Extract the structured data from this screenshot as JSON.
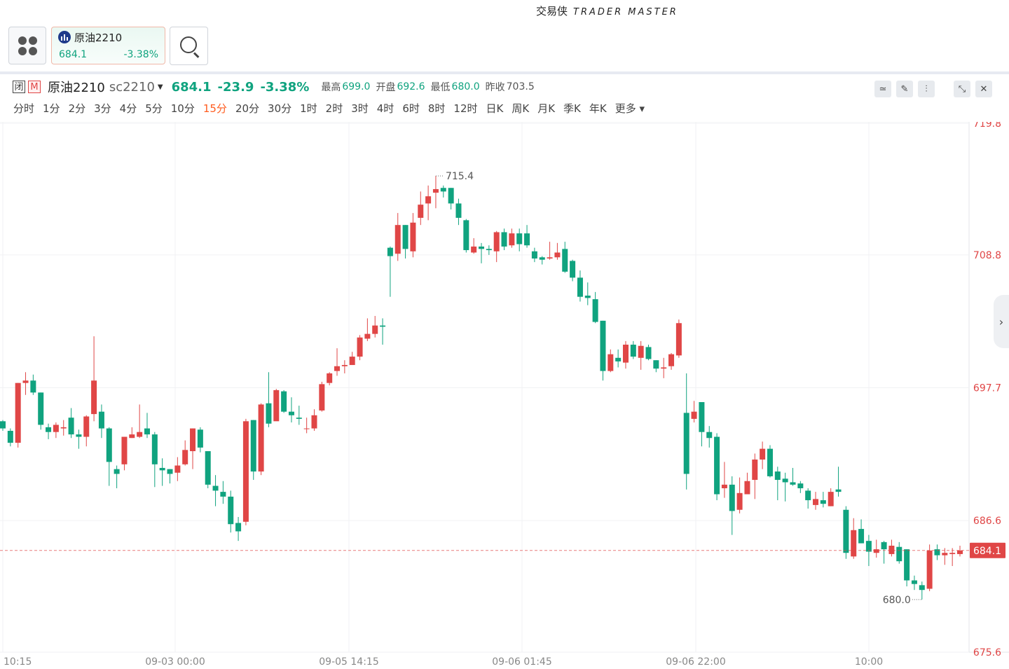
{
  "brand": {
    "cn": "交易侠",
    "en": "TRADER MASTER"
  },
  "topbar": {
    "symbol_tab": {
      "name": "原油2210",
      "price": "684.1",
      "change_pct": "-3.38%"
    }
  },
  "info": {
    "closed_tag": "闭",
    "market_tag": "M",
    "symbol": "原油2210",
    "code": "sc2210",
    "price": "684.1",
    "change": "-23.9",
    "change_pct": "-3.38%",
    "high_label": "最高",
    "high": "699.0",
    "open_label": "开盘",
    "open": "692.6",
    "low_label": "最低",
    "low": "680.0",
    "prev_label": "昨收",
    "prev": "703.5"
  },
  "periods": [
    "分时",
    "1分",
    "2分",
    "3分",
    "4分",
    "5分",
    "10分",
    "15分",
    "20分",
    "30分",
    "1时",
    "2时",
    "3时",
    "4时",
    "6时",
    "8时",
    "12时",
    "日K",
    "周K",
    "月K",
    "季K",
    "年K",
    "更多"
  ],
  "active_period": "15分",
  "colors": {
    "up": "#e04646",
    "down": "#10a37f",
    "active": "#ff5c1f"
  },
  "chart_data": {
    "type": "candlestick",
    "y_ticks": [
      "719.8",
      "708.8",
      "697.7",
      "686.6",
      "675.6"
    ],
    "x_ticks": [
      "10:15",
      "09-03 00:00",
      "09-05 14:15",
      "09-06 01:45",
      "09-06 22:00",
      "10:00"
    ],
    "ylim": [
      675.6,
      719.8
    ],
    "current_price": "684.1",
    "max_label": "715.4",
    "min_label": "680.0",
    "candles": [
      [
        694.9,
        694.3,
        695.0,
        694.1
      ],
      [
        694.1,
        693.1,
        694.3,
        692.8
      ],
      [
        693.1,
        698.1,
        698.1,
        692.7
      ],
      [
        698.1,
        698.3,
        699.0,
        697.1
      ],
      [
        698.3,
        697.3,
        698.8,
        697.1
      ],
      [
        697.3,
        694.6,
        697.3,
        694.2
      ],
      [
        694.4,
        694.0,
        694.7,
        693.4
      ],
      [
        694.0,
        694.6,
        694.8,
        693.5
      ],
      [
        694.3,
        694.4,
        695.0,
        693.7
      ],
      [
        695.2,
        693.8,
        696.0,
        693.5
      ],
      [
        693.8,
        693.6,
        694.2,
        692.6
      ],
      [
        693.6,
        695.3,
        695.4,
        692.8
      ],
      [
        695.5,
        698.3,
        702.0,
        694.9
      ],
      [
        695.7,
        694.3,
        696.3,
        693.5
      ],
      [
        694.3,
        691.5,
        694.4,
        689.5
      ],
      [
        690.9,
        690.5,
        691.2,
        689.3
      ],
      [
        691.3,
        693.6,
        693.6,
        690.8
      ],
      [
        693.5,
        693.8,
        694.4,
        693.5
      ],
      [
        693.6,
        694.0,
        696.3,
        693.5
      ],
      [
        694.3,
        693.8,
        695.6,
        693.5
      ],
      [
        693.8,
        691.3,
        694.0,
        689.4
      ],
      [
        691.0,
        690.8,
        691.8,
        689.5
      ],
      [
        690.9,
        690.5,
        690.9,
        689.7
      ],
      [
        690.6,
        691.2,
        691.9,
        689.9
      ],
      [
        691.3,
        692.5,
        693.3,
        691.2
      ],
      [
        692.4,
        694.3,
        694.3,
        690.9
      ],
      [
        694.2,
        692.7,
        694.4,
        692.3
      ],
      [
        692.4,
        689.6,
        692.4,
        689.3
      ],
      [
        689.5,
        689.1,
        690.4,
        687.8
      ],
      [
        689.0,
        688.6,
        689.9,
        688.0
      ],
      [
        688.6,
        686.3,
        689.1,
        685.6
      ],
      [
        686.4,
        685.7,
        686.9,
        684.9
      ],
      [
        686.5,
        694.9,
        695.1,
        686.2
      ],
      [
        695.0,
        690.7,
        695.0,
        690.0
      ],
      [
        690.7,
        696.3,
        696.4,
        690.4
      ],
      [
        696.4,
        694.7,
        699.0,
        694.4
      ],
      [
        694.9,
        697.5,
        697.6,
        695.2
      ],
      [
        697.4,
        695.7,
        697.5,
        695.6
      ],
      [
        695.7,
        695.4,
        696.9,
        694.8
      ],
      [
        695.2,
        695.1,
        696.2,
        694.6
      ],
      [
        694.3,
        694.3,
        695.2,
        693.9
      ],
      [
        694.3,
        695.4,
        695.9,
        694.1
      ],
      [
        695.8,
        698.0,
        698.2,
        695.7
      ],
      [
        698.1,
        698.9,
        699.0,
        697.9
      ],
      [
        699.1,
        699.5,
        701.0,
        698.7
      ],
      [
        699.5,
        699.6,
        700.0,
        698.9
      ],
      [
        699.6,
        700.3,
        700.7,
        699.6
      ],
      [
        700.3,
        701.9,
        702.1,
        700.0
      ],
      [
        701.8,
        702.2,
        703.5,
        701.6
      ],
      [
        702.2,
        702.9,
        703.7,
        701.9
      ],
      [
        702.9,
        702.8,
        703.5,
        701.3
      ],
      [
        709.4,
        708.7,
        709.5,
        705.3
      ],
      [
        708.9,
        711.3,
        712.3,
        708.3
      ],
      [
        711.3,
        709.3,
        711.3,
        708.5
      ],
      [
        709.1,
        711.5,
        712.3,
        708.6
      ],
      [
        711.9,
        713.0,
        714.1,
        711.3
      ],
      [
        713.1,
        713.7,
        714.6,
        711.7
      ],
      [
        714.0,
        714.3,
        715.4,
        712.7
      ],
      [
        714.4,
        714.1,
        714.6,
        713.6
      ],
      [
        714.4,
        713.1,
        714.4,
        712.6
      ],
      [
        713.1,
        711.9,
        713.5,
        711.3
      ],
      [
        711.7,
        709.2,
        711.8,
        709.0
      ],
      [
        709.0,
        709.5,
        710.2,
        708.9
      ],
      [
        709.5,
        709.3,
        709.8,
        708.1
      ],
      [
        709.3,
        709.2,
        709.6,
        708.8
      ],
      [
        709.1,
        710.7,
        710.8,
        708.2
      ],
      [
        710.7,
        709.5,
        711.0,
        709.2
      ],
      [
        709.6,
        710.6,
        711.0,
        709.4
      ],
      [
        710.6,
        709.7,
        711.0,
        709.1
      ],
      [
        710.6,
        709.6,
        711.3,
        709.4
      ],
      [
        709.1,
        708.5,
        709.4,
        708.2
      ],
      [
        708.6,
        708.4,
        708.7,
        708.0
      ],
      [
        708.5,
        708.6,
        709.9,
        708.4
      ],
      [
        708.6,
        709.0,
        709.8,
        708.4
      ],
      [
        709.3,
        707.4,
        709.9,
        707.3
      ],
      [
        708.3,
        706.9,
        708.4,
        706.6
      ],
      [
        706.9,
        705.3,
        707.5,
        704.9
      ],
      [
        705.4,
        705.2,
        706.5,
        704.6
      ],
      [
        705.1,
        703.2,
        705.7,
        703.1
      ],
      [
        703.3,
        699.1,
        703.3,
        698.3
      ],
      [
        699.1,
        700.5,
        700.9,
        699.0
      ],
      [
        700.2,
        699.9,
        700.9,
        699.4
      ],
      [
        699.8,
        701.3,
        701.6,
        699.3
      ],
      [
        701.3,
        700.3,
        701.6,
        700.1
      ],
      [
        700.2,
        701.2,
        701.6,
        699.2
      ],
      [
        701.1,
        700.1,
        701.3,
        700.0
      ],
      [
        700.0,
        699.3,
        700.0,
        699.0
      ],
      [
        699.3,
        699.4,
        700.2,
        698.5
      ],
      [
        699.5,
        700.5,
        700.6,
        699.2
      ],
      [
        700.4,
        703.1,
        703.4,
        700.2
      ],
      [
        695.6,
        690.5,
        698.9,
        689.2
      ],
      [
        695.1,
        695.7,
        696.6,
        694.8
      ],
      [
        696.5,
        694.0,
        696.5,
        692.8
      ],
      [
        694.0,
        693.5,
        694.5,
        692.7
      ],
      [
        693.6,
        688.8,
        693.9,
        688.3
      ],
      [
        689.3,
        689.6,
        691.5,
        688.5
      ],
      [
        689.6,
        687.4,
        690.3,
        685.4
      ],
      [
        687.5,
        688.9,
        690.2,
        687.2
      ],
      [
        688.8,
        689.9,
        690.6,
        689.6
      ],
      [
        690.0,
        691.7,
        692.2,
        688.4
      ],
      [
        691.7,
        692.6,
        693.2,
        690.9
      ],
      [
        692.6,
        690.3,
        692.9,
        690.2
      ],
      [
        690.7,
        690.0,
        691.1,
        688.3
      ],
      [
        690.1,
        689.8,
        690.6,
        688.2
      ],
      [
        689.8,
        689.6,
        691.0,
        689.5
      ],
      [
        689.7,
        689.3,
        689.9,
        688.9
      ],
      [
        689.1,
        688.3,
        689.3,
        687.6
      ],
      [
        687.9,
        688.4,
        689.0,
        687.5
      ],
      [
        688.3,
        688.0,
        689.0,
        687.7
      ],
      [
        687.8,
        689.0,
        689.3,
        687.8
      ],
      [
        689.2,
        689.0,
        691.1,
        688.6
      ],
      [
        687.5,
        683.9,
        687.8,
        683.4
      ],
      [
        683.6,
        685.8,
        686.8,
        683.4
      ],
      [
        685.9,
        684.7,
        686.7,
        684.7
      ],
      [
        684.9,
        684.0,
        685.4,
        682.8
      ],
      [
        683.9,
        684.2,
        685.0,
        683.5
      ],
      [
        684.8,
        684.2,
        684.9,
        683.0
      ],
      [
        683.8,
        684.5,
        685.0,
        683.6
      ],
      [
        684.4,
        683.2,
        684.8,
        683.0
      ],
      [
        684.2,
        681.6,
        684.2,
        681.1
      ],
      [
        681.6,
        681.3,
        682.0,
        680.8
      ],
      [
        681.2,
        680.8,
        681.5,
        680.0
      ],
      [
        680.9,
        684.1,
        684.6,
        680.7
      ],
      [
        684.2,
        683.7,
        684.6,
        683.3
      ],
      [
        683.7,
        683.9,
        684.3,
        682.9
      ],
      [
        683.8,
        683.9,
        684.3,
        682.8
      ],
      [
        683.8,
        684.1,
        684.5,
        683.6
      ]
    ]
  }
}
